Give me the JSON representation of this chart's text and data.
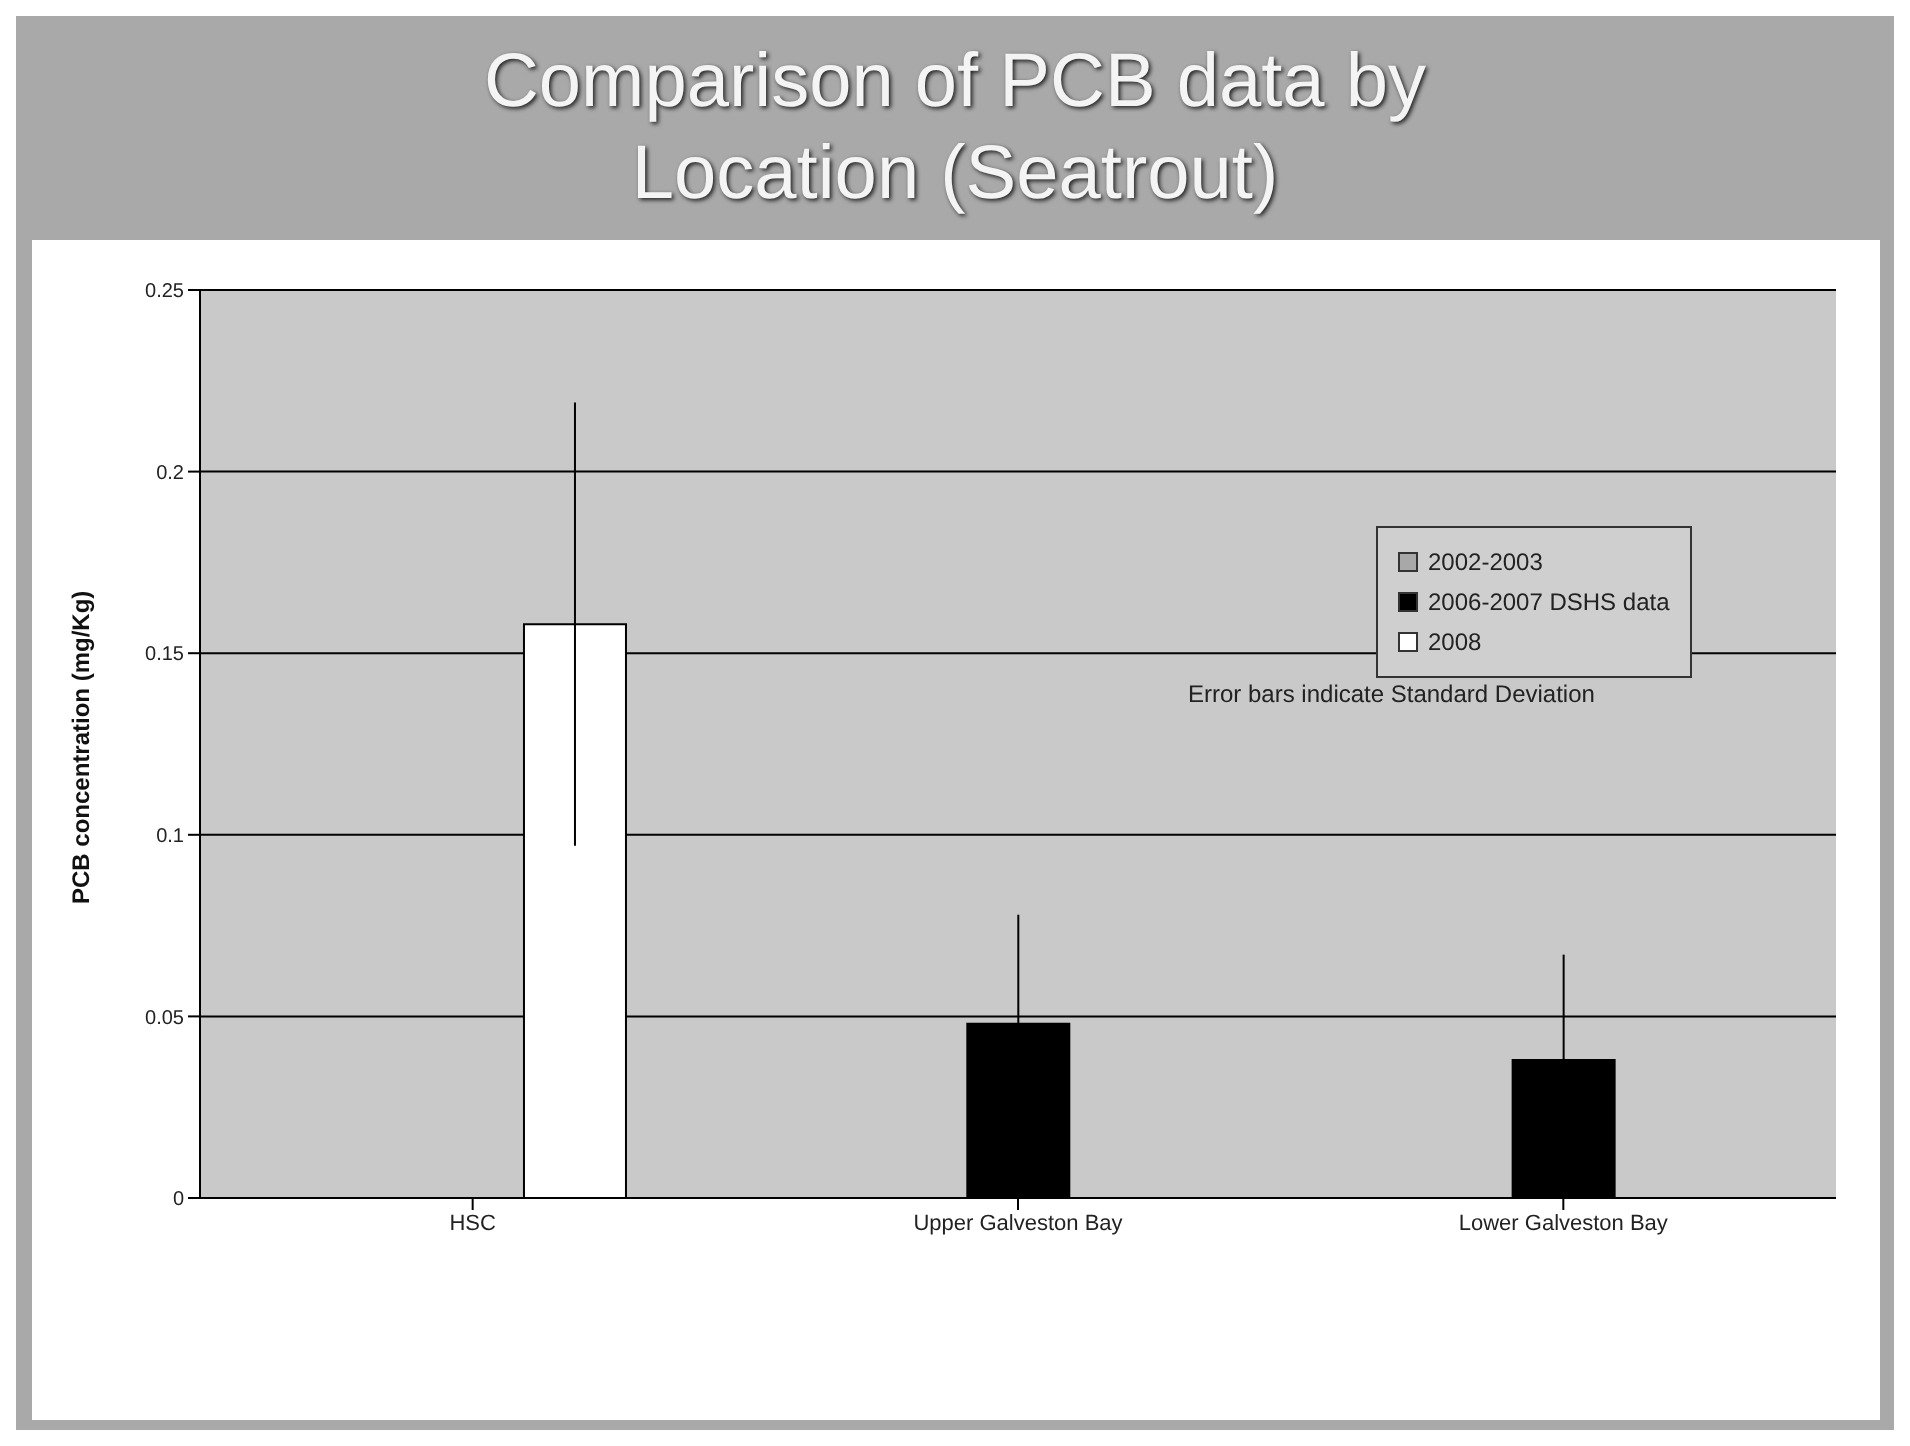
{
  "chart_data": {
    "type": "bar",
    "title": "Comparison of PCB data by Location (Seatrout)",
    "ylabel": "PCB concentration (mg/Kg)",
    "categories": [
      "HSC",
      "Upper Galveston Bay",
      "Lower Galveston Bay"
    ],
    "series": [
      {
        "name": "2002-2003",
        "color": "#a8a8a8",
        "values": [
          null,
          null,
          null
        ]
      },
      {
        "name": "2006-2007 DSHS data",
        "color": "#000000",
        "values": [
          null,
          0.048,
          0.038
        ],
        "errors": [
          null,
          0.03,
          0.029
        ]
      },
      {
        "name": "2008",
        "color": "#ffffff",
        "values": [
          0.158,
          null,
          null
        ],
        "errors": [
          0.061,
          null,
          null
        ]
      }
    ],
    "ylim": [
      0,
      0.25
    ],
    "yticks": [
      0,
      0.05,
      0.1,
      0.15,
      0.2,
      0.25
    ],
    "grid": "y",
    "legend": "top right",
    "annotations": [
      "Error bars indicate Standard Deviation"
    ]
  }
}
